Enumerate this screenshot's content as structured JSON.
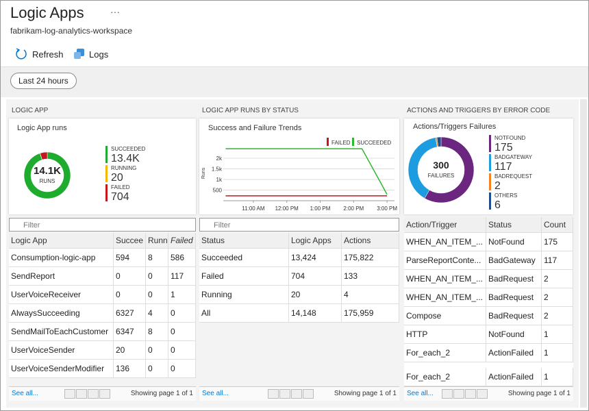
{
  "header": {
    "title": "Logic Apps",
    "more": "···",
    "subtitle": "fabrikam-log-analytics-workspace"
  },
  "toolbar": {
    "refresh": "Refresh",
    "logs": "Logs"
  },
  "time_range": "Last 24 hours",
  "panels": [
    {
      "heading": "LOGIC APP",
      "filter": "Filter",
      "table": {
        "columns": [
          "Logic App",
          "Succee",
          "Runn",
          "Failed"
        ],
        "rows": [
          [
            "Consumption-logic-app",
            "594",
            "8",
            "586"
          ],
          [
            "SendReport",
            "0",
            "0",
            "117"
          ],
          [
            "UserVoiceReceiver",
            "0",
            "0",
            "1"
          ],
          [
            "AlwaysSucceeding",
            "6327",
            "4",
            "0"
          ],
          [
            "SendMailToEachCustomer",
            "6347",
            "8",
            "0"
          ],
          [
            "UserVoiceSender",
            "20",
            "0",
            "0"
          ],
          [
            "UserVoiceSenderModifier",
            "136",
            "0",
            "0"
          ]
        ]
      },
      "footer": {
        "see_all": "See all...",
        "page": "Showing page 1 of 1"
      }
    },
    {
      "heading": "LOGIC APP RUNS BY STATUS",
      "filter": "Filter",
      "table": {
        "columns": [
          "Status",
          "Logic Apps",
          "Actions"
        ],
        "rows": [
          [
            "Succeeded",
            "13,424",
            "175,822"
          ],
          [
            "Failed",
            "704",
            "133"
          ],
          [
            "Running",
            "20",
            "4"
          ],
          [
            "All",
            "14,148",
            "175,959"
          ]
        ]
      },
      "footer": {
        "see_all": "See all...",
        "page": "Showing page 1 of 1"
      }
    },
    {
      "heading": "ACTIONS AND TRIGGERS BY ERROR CODE",
      "table": {
        "columns": [
          "Action/Trigger",
          "Status",
          "Count"
        ],
        "rows": [
          [
            "WHEN_AN_ITEM_...",
            "NotFound",
            "175"
          ],
          [
            "ParseReportConte...",
            "BadGateway",
            "117"
          ],
          [
            "WHEN_AN_ITEM_...",
            "BadRequest",
            "2"
          ],
          [
            "WHEN_AN_ITEM_...",
            "BadRequest",
            "2"
          ],
          [
            "Compose",
            "BadRequest",
            "2"
          ],
          [
            "HTTP",
            "NotFound",
            "1"
          ],
          [
            "For_each_2",
            "ActionFailed",
            "1"
          ],
          [
            "For_each_2",
            "ActionFailed",
            "1"
          ]
        ]
      },
      "footer": {
        "see_all": "See all...",
        "page": "Showing page 1 of 1"
      }
    }
  ],
  "chart_data": [
    {
      "type": "donut",
      "title": "Logic App runs",
      "total": {
        "value": 14148,
        "label": "14.1K"
      },
      "total_label": "RUNS",
      "series": [
        {
          "name": "SUCCEEDED",
          "color": "#1fab2e",
          "values": [
            13424
          ],
          "value_labels": [
            "13.4K"
          ]
        },
        {
          "name": "RUNNING",
          "color": "#f2b705",
          "values": [
            20
          ]
        },
        {
          "name": "FAILED",
          "color": "#c4161c",
          "values": [
            704
          ]
        }
      ]
    },
    {
      "type": "line",
      "title": "Success and Failure Trends",
      "y_label": "Runs",
      "legend": "top-right",
      "x": [
        10.17,
        14.25,
        15
      ],
      "series": [
        {
          "name": "FAILED",
          "color": "#c4161c",
          "values": [
            230,
            230,
            230
          ]
        },
        {
          "name": "SUCCEEDED",
          "color": "#2eb82e",
          "values": [
            2450,
            2450,
            300
          ]
        }
      ],
      "xlim": [
        10.1,
        15.1
      ],
      "xticks": [
        {
          "value": 11,
          "label": "11:00 AM"
        },
        {
          "value": 12,
          "label": "12:00 PM"
        },
        {
          "value": 13,
          "label": "1:00 PM"
        },
        {
          "value": 14,
          "label": "2:00 PM"
        },
        {
          "value": 15,
          "label": "3:00 PM"
        }
      ],
      "ylim": [
        0,
        2550
      ],
      "yticks": [
        500,
        {
          "value": 1000,
          "label": "1k"
        },
        {
          "value": 1500,
          "label": "1.5k"
        },
        {
          "value": 2000,
          "label": "2k"
        }
      ],
      "grid": true
    },
    {
      "type": "donut",
      "title": "Actions/Triggers Failures",
      "total": 300,
      "total_label": "FAILURES",
      "series": [
        {
          "name": "NOTFOUND",
          "color": "#6b2680",
          "values": [
            175
          ]
        },
        {
          "name": "BADGATEWAY",
          "color": "#1e9ce0",
          "values": [
            117
          ]
        },
        {
          "name": "BADREQUEST",
          "color": "#f58220",
          "values": [
            2
          ]
        },
        {
          "name": "OTHERS",
          "color": "#1f4e8c",
          "values": [
            6
          ]
        }
      ]
    }
  ]
}
